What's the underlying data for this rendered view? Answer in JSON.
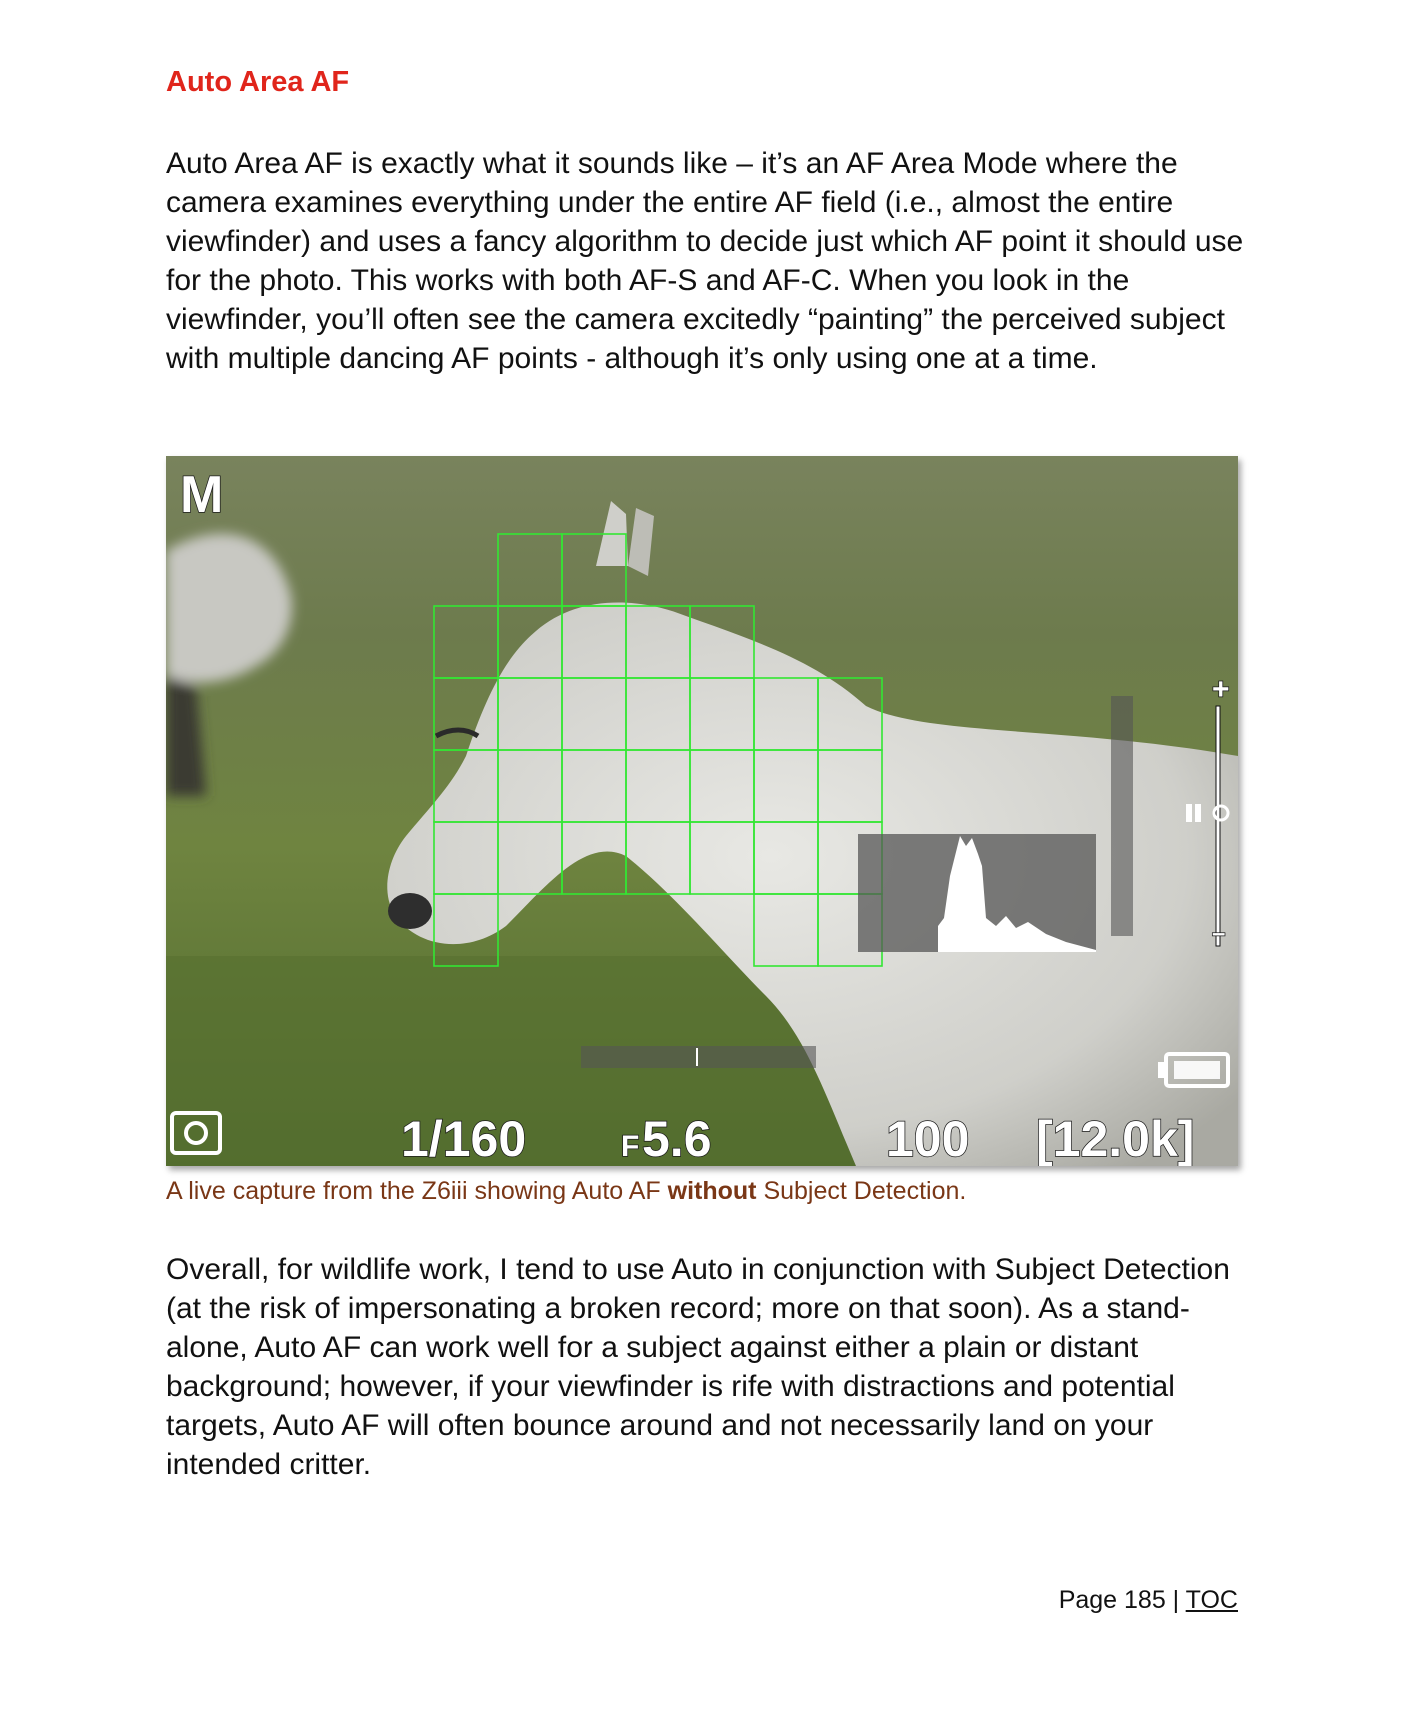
{
  "heading": "Auto Area AF",
  "intro_paragraph": "Auto Area AF is exactly what it sounds like – it’s an AF Area Mode where the camera examines everything under the entire AF field (i.e., almost the entire viewfinder) and uses a fancy algorithm to decide just which AF point it should use for the photo. This works with both AF-S and AF-C. When you look in the viewfinder, you’ll often see the camera excitedly “painting” the perceived subject with multiple dancing AF points - although it’s only using one at a time.",
  "figure": {
    "mode": "M",
    "shutter": "1/160",
    "aperture_prefix": "F",
    "aperture": "5.6",
    "iso": "100",
    "shots_remaining": "[12.0k]",
    "exposure_scale_plus": "+",
    "exposure_scale_minus": "–",
    "af_box_color": "#33e633"
  },
  "caption": {
    "before": "A live capture from the Z6iii showing Auto AF ",
    "bold": "without",
    "after": " Subject Detection."
  },
  "overall_paragraph": "Overall, for wildlife work, I tend to use Auto in conjunction with Subject Detection (at the risk of impersonating a broken record; more on that soon). As a stand-alone, Auto AF can work well for a subject against either a plain or distant background; however, if your viewfinder is rife with distractions and potential targets, Auto AF will often bounce around and not necessarily land on your intended critter.",
  "footer": {
    "page": "Page 185",
    "separator": " | ",
    "toc": "TOC"
  }
}
